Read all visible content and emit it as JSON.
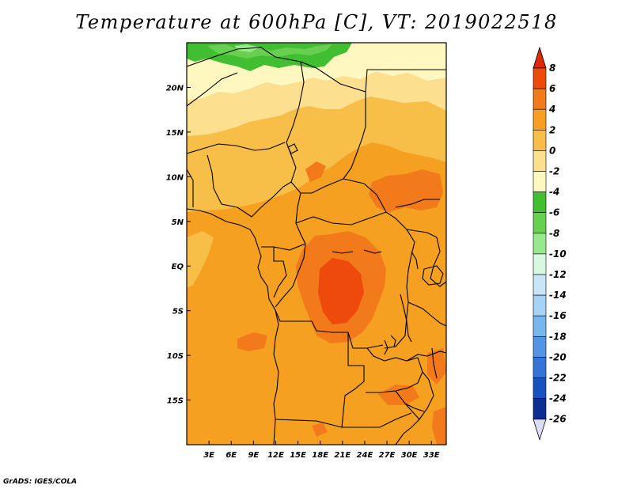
{
  "title": "Temperature at 600hPa [C], VT: 2019022518",
  "credit": "GrADS: IGES/COLA",
  "map": {
    "lon_range": [
      0,
      35
    ],
    "lat_range": [
      -20,
      25
    ],
    "lon_labels": [
      {
        "lon": 3,
        "label": "3E"
      },
      {
        "lon": 6,
        "label": "6E"
      },
      {
        "lon": 9,
        "label": "9E"
      },
      {
        "lon": 12,
        "label": "12E"
      },
      {
        "lon": 15,
        "label": "15E"
      },
      {
        "lon": 18,
        "label": "18E"
      },
      {
        "lon": 21,
        "label": "21E"
      },
      {
        "lon": 24,
        "label": "24E"
      },
      {
        "lon": 27,
        "label": "27E"
      },
      {
        "lon": 30,
        "label": "30E"
      },
      {
        "lon": 33,
        "label": "33E"
      }
    ],
    "lat_labels": [
      {
        "lat": 20,
        "label": "20N"
      },
      {
        "lat": 15,
        "label": "15N"
      },
      {
        "lat": 10,
        "label": "10N"
      },
      {
        "lat": 5,
        "label": "5N"
      },
      {
        "lat": 0,
        "label": "EQ"
      },
      {
        "lat": -5,
        "label": "5S"
      },
      {
        "lat": -10,
        "label": "10S"
      },
      {
        "lat": -15,
        "label": "15S"
      }
    ]
  },
  "colorbar": {
    "levels": [
      "8",
      "6",
      "4",
      "2",
      "0",
      "-2",
      "-4",
      "-6",
      "-8",
      "-10",
      "-12",
      "-14",
      "-16",
      "-18",
      "-20",
      "-22",
      "-24",
      "-26"
    ],
    "colors": [
      "#dc2a0a",
      "#ee4a0c",
      "#f27a1a",
      "#f5a020",
      "#f7be48",
      "#fce090",
      "#fef8c0",
      "#42be32",
      "#68d050",
      "#98e890",
      "#d8f8e0",
      "#c8e6f8",
      "#a6d2f6",
      "#78b6ee",
      "#5096e4",
      "#3474d8",
      "#1852c0",
      "#0c2e90",
      "#0a0a60"
    ]
  }
}
